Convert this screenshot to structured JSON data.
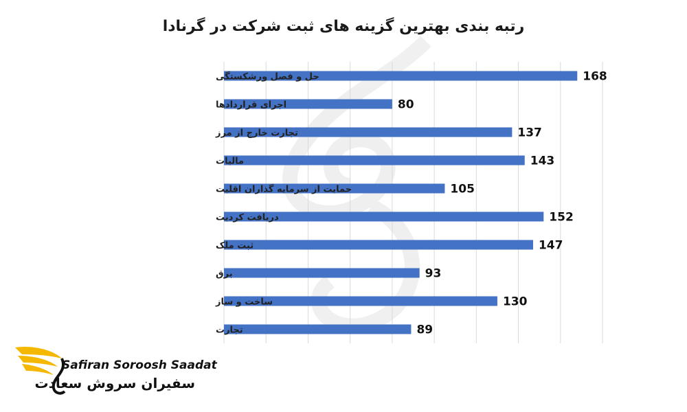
{
  "chart_data": {
    "type": "bar",
    "orientation": "horizontal",
    "title": "رتبه بندی بهترین گزینه های ثبت شرکت در گرنادا",
    "categories": [
      "حل و فصل ورشکستگی",
      "اجرای قراردادها",
      "تجارت خارج از مرز",
      "مالیات",
      "حمایت از سرمایه گذاران اقلیت",
      "دریافت کردیت",
      "ثبت ملک",
      "برق",
      "ساخت و ساز",
      "تجارت"
    ],
    "values": [
      168,
      80,
      137,
      143,
      105,
      152,
      147,
      93,
      130,
      89
    ],
    "xlim": [
      0,
      180
    ],
    "grid": true,
    "bar_color": "#4472c4",
    "data_labels": true
  },
  "logo": {
    "name_en": "Safiran Soroosh Saadat",
    "name_fa": "سفیران سروش سعادت",
    "accent_color": "#f5b800"
  }
}
